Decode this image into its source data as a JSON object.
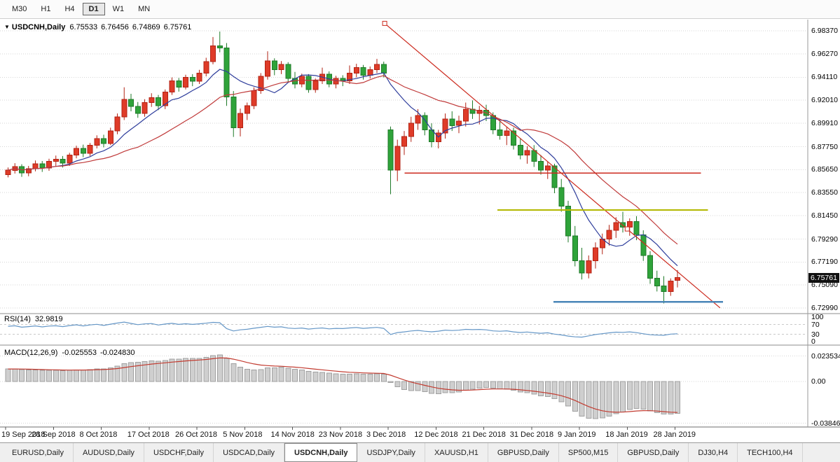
{
  "toolbar": {
    "timeframes": [
      {
        "label": "M30",
        "active": false
      },
      {
        "label": "H1",
        "active": false
      },
      {
        "label": "H4",
        "active": false
      },
      {
        "label": "D1",
        "active": true
      },
      {
        "label": "W1",
        "active": false
      },
      {
        "label": "MN",
        "active": false
      }
    ]
  },
  "header": {
    "dropdown_icon": "▼",
    "symbol": "USDCNH,Daily",
    "open": "6.75533",
    "high": "6.76456",
    "low": "6.74869",
    "close": "6.75761"
  },
  "price_axis": {
    "ticks": [
      "6.98370",
      "6.96270",
      "6.94110",
      "6.92010",
      "6.89910",
      "6.87750",
      "6.85650",
      "6.83550",
      "6.81450",
      "6.79290",
      "6.77190",
      "6.75090",
      "6.72990"
    ],
    "bid_badge": "6.75761"
  },
  "indicators": {
    "rsi": {
      "label": "RSI(14)",
      "value": "32.9819",
      "axis_ticks": [
        "100",
        "70",
        "30",
        "0"
      ],
      "level_lines": [
        70,
        30
      ]
    },
    "macd": {
      "label": "MACD(12,26,9)",
      "value_main": "-0.025553",
      "value_signal": "-0.024830",
      "axis_ticks": [
        "0.023534",
        "0.00",
        "-0.038466"
      ]
    }
  },
  "date_axis": {
    "labels": [
      "19 Sep 2018",
      "28 Sep 2018",
      "8 Oct 2018",
      "17 Oct 2018",
      "26 Oct 2018",
      "5 Nov 2018",
      "14 Nov 2018",
      "23 Nov 2018",
      "3 Dec 2018",
      "12 Dec 2018",
      "21 Dec 2018",
      "31 Dec 2018",
      "9 Jan 2019",
      "18 Jan 2019",
      "28 Jan 2019"
    ],
    "bars_per_label": 7
  },
  "tabs": [
    {
      "label": "EURUSD,Daily",
      "active": false
    },
    {
      "label": "AUDUSD,Daily",
      "active": false
    },
    {
      "label": "USDCHF,Daily",
      "active": false
    },
    {
      "label": "USDCAD,Daily",
      "active": false
    },
    {
      "label": "USDCNH,Daily",
      "active": true
    },
    {
      "label": "USDJPY,Daily",
      "active": false
    },
    {
      "label": "XAUUSD,H1",
      "active": false
    },
    {
      "label": "GBPUSD,Daily",
      "active": false
    },
    {
      "label": "SP500,M15",
      "active": false
    },
    {
      "label": "GBPUSD,Daily",
      "active": false
    },
    {
      "label": "DJ30,H4",
      "active": false
    },
    {
      "label": "TECH100,H4",
      "active": false
    }
  ],
  "chart_data": {
    "type": "candlestick",
    "symbol": "USDCNH",
    "timeframe": "Daily",
    "candle_convention": "red=bullish(up), green=bearish(down)",
    "ohlc_current": {
      "open": 6.75533,
      "high": 6.76456,
      "low": 6.74869,
      "close": 6.75761
    },
    "price_axis_range": {
      "top": 6.994,
      "bottom": 6.725
    },
    "candles": [
      [
        6.852,
        6.8585,
        6.8495,
        6.856
      ],
      [
        6.856,
        6.8625,
        6.853,
        6.8595
      ],
      [
        6.8595,
        6.8615,
        6.85,
        6.8535
      ],
      [
        6.8535,
        6.86,
        6.8505,
        6.8575
      ],
      [
        6.8575,
        6.865,
        6.855,
        6.862
      ],
      [
        6.862,
        6.8645,
        6.8545,
        6.858
      ],
      [
        6.858,
        6.8665,
        6.8555,
        6.864
      ],
      [
        6.864,
        6.8695,
        6.86,
        6.866
      ],
      [
        6.866,
        6.869,
        6.8585,
        6.8625
      ],
      [
        6.8625,
        6.872,
        6.86,
        6.87
      ],
      [
        6.87,
        6.8785,
        6.867,
        6.876
      ],
      [
        6.876,
        6.8795,
        6.868,
        6.8715
      ],
      [
        6.8715,
        6.881,
        6.869,
        6.879
      ],
      [
        6.879,
        6.888,
        6.876,
        6.885
      ],
      [
        6.885,
        6.8885,
        6.877,
        6.8805
      ],
      [
        6.8805,
        6.895,
        6.879,
        6.892
      ],
      [
        6.892,
        6.908,
        6.889,
        6.905
      ],
      [
        6.905,
        6.932,
        6.902,
        6.921
      ],
      [
        6.921,
        6.926,
        6.91,
        6.9145
      ],
      [
        6.9145,
        6.9185,
        6.904,
        6.908
      ],
      [
        6.908,
        6.921,
        6.905,
        6.918
      ],
      [
        6.918,
        6.9265,
        6.914,
        6.9225
      ],
      [
        6.9225,
        6.925,
        6.911,
        6.915
      ],
      [
        6.915,
        6.93,
        6.912,
        6.9275
      ],
      [
        6.9275,
        6.941,
        6.925,
        6.938
      ],
      [
        6.938,
        6.9405,
        6.928,
        6.932
      ],
      [
        6.932,
        6.9435,
        6.93,
        6.941
      ],
      [
        6.941,
        6.944,
        6.933,
        6.9375
      ],
      [
        6.9375,
        6.948,
        6.935,
        6.945
      ],
      [
        6.945,
        6.959,
        6.942,
        6.9555
      ],
      [
        6.9555,
        6.978,
        6.953,
        6.97
      ],
      [
        6.97,
        6.983,
        6.964,
        6.968
      ],
      [
        6.968,
        6.9725,
        6.915,
        6.923
      ],
      [
        6.923,
        6.9285,
        6.8865,
        6.895
      ],
      [
        6.895,
        6.9125,
        6.887,
        6.908
      ],
      [
        6.908,
        6.918,
        6.902,
        6.915
      ],
      [
        6.915,
        6.932,
        6.912,
        6.929
      ],
      [
        6.929,
        6.945,
        6.926,
        6.942
      ],
      [
        6.942,
        6.965,
        6.939,
        6.956
      ],
      [
        6.956,
        6.9585,
        6.943,
        6.948
      ],
      [
        6.948,
        6.956,
        6.944,
        6.953
      ],
      [
        6.953,
        6.955,
        6.937,
        6.94
      ],
      [
        6.94,
        6.946,
        6.931,
        6.935
      ],
      [
        6.935,
        6.9445,
        6.932,
        6.942
      ],
      [
        6.942,
        6.944,
        6.927,
        6.93
      ],
      [
        6.93,
        6.94,
        6.927,
        6.938
      ],
      [
        6.938,
        6.95,
        6.935,
        6.944
      ],
      [
        6.944,
        6.9465,
        6.932,
        6.935
      ],
      [
        6.935,
        6.9425,
        6.931,
        6.94
      ],
      [
        6.94,
        6.943,
        6.933,
        6.938
      ],
      [
        6.938,
        6.952,
        6.935,
        6.945
      ],
      [
        6.945,
        6.9535,
        6.941,
        6.95
      ],
      [
        6.95,
        6.9525,
        6.939,
        6.943
      ],
      [
        6.943,
        6.951,
        6.94,
        6.948
      ],
      [
        6.948,
        6.958,
        6.945,
        6.953
      ],
      [
        6.953,
        6.9555,
        6.941,
        6.945
      ],
      [
        6.893,
        6.896,
        6.834,
        6.856
      ],
      [
        6.856,
        6.884,
        6.846,
        6.878
      ],
      [
        6.878,
        6.892,
        6.87,
        6.887
      ],
      [
        6.887,
        6.905,
        6.882,
        6.899
      ],
      [
        6.899,
        6.912,
        6.893,
        6.906
      ],
      [
        6.906,
        6.909,
        6.888,
        6.893
      ],
      [
        6.893,
        6.899,
        6.877,
        6.882
      ],
      [
        6.882,
        6.893,
        6.876,
        6.89
      ],
      [
        6.89,
        6.908,
        6.885,
        6.903
      ],
      [
        6.903,
        6.91,
        6.892,
        6.897
      ],
      [
        6.897,
        6.906,
        6.89,
        6.901
      ],
      [
        6.901,
        6.918,
        6.896,
        6.912
      ],
      [
        6.912,
        6.92,
        6.903,
        6.908
      ],
      [
        6.908,
        6.915,
        6.898,
        6.911
      ],
      [
        6.911,
        6.916,
        6.901,
        6.906
      ],
      [
        6.906,
        6.909,
        6.889,
        6.893
      ],
      [
        6.893,
        6.901,
        6.884,
        6.888
      ],
      [
        6.888,
        6.896,
        6.879,
        6.892
      ],
      [
        6.892,
        6.895,
        6.875,
        6.879
      ],
      [
        6.879,
        6.885,
        6.866,
        6.87
      ],
      [
        6.87,
        6.878,
        6.862,
        6.874
      ],
      [
        6.874,
        6.879,
        6.859,
        6.864
      ],
      [
        6.864,
        6.87,
        6.852,
        6.856
      ],
      [
        6.856,
        6.864,
        6.848,
        6.86
      ],
      [
        6.86,
        6.862,
        6.835,
        6.84
      ],
      [
        6.84,
        6.848,
        6.818,
        6.823
      ],
      [
        6.823,
        6.828,
        6.79,
        6.796
      ],
      [
        6.796,
        6.805,
        6.768,
        6.773
      ],
      [
        6.773,
        6.785,
        6.756,
        6.762
      ],
      [
        6.762,
        6.778,
        6.757,
        6.773
      ],
      [
        6.773,
        6.79,
        6.766,
        6.785
      ],
      [
        6.785,
        6.798,
        6.779,
        6.793
      ],
      [
        6.793,
        6.806,
        6.787,
        6.801
      ],
      [
        6.801,
        6.813,
        6.794,
        6.808
      ],
      [
        6.808,
        6.818,
        6.799,
        6.804
      ],
      [
        6.804,
        6.812,
        6.796,
        6.809
      ],
      [
        6.809,
        6.814,
        6.792,
        6.797
      ],
      [
        6.797,
        6.801,
        6.773,
        6.778
      ],
      [
        6.778,
        6.782,
        6.752,
        6.757
      ],
      [
        6.757,
        6.764,
        6.745,
        6.75
      ],
      [
        6.75,
        6.759,
        6.734,
        6.745
      ],
      [
        6.745,
        6.757,
        6.741,
        6.7545
      ],
      [
        6.75533,
        6.76456,
        6.74869,
        6.75761
      ]
    ],
    "moving_averages": [
      {
        "name": "fast",
        "period": 8,
        "color_key": "ma_fast"
      },
      {
        "name": "slow",
        "period": 20,
        "color_key": "ma_slow"
      }
    ],
    "objects": {
      "trendline": {
        "from_bar": 55.5,
        "from_price": 6.9905,
        "to_bar": 104.6,
        "to_price": 6.73,
        "handles": [
          [
            55.5,
            6.9905
          ],
          [
            91,
            6.8022
          ]
        ],
        "color_key": "object_red"
      },
      "hlines": [
        {
          "price": 6.8535,
          "from_bar": 58.4,
          "to_bar": 101.8,
          "color_key": "object_red",
          "width": 1.5
        },
        {
          "price": 6.8195,
          "from_bar": 72.0,
          "to_bar": 102.8,
          "color_key": "object_olive",
          "width": 2
        },
        {
          "price": 6.7355,
          "from_bar": 80.2,
          "to_bar": 105.0,
          "color_key": "object_blue",
          "width": 2.5
        }
      ]
    },
    "indicator_seed": {
      "rsi_avg_gain": 0.003,
      "rsi_avg_loss": 0.0018,
      "ema12": 6.848,
      "ema26": 6.836,
      "signal": 0.0115
    },
    "colors": {
      "bull": "#df3b28",
      "bull_border": "#b22314",
      "bear": "#2fa33a",
      "bear_border": "#1f7a28",
      "ma_fast": "#2f3e9c",
      "ma_slow": "#c03a3a",
      "object_red": "#cc2a1e",
      "object_olive": "#b3b800",
      "object_blue": "#4a86b8",
      "rsi_line": "#6597c7",
      "macd_hist": "#cfcfcf",
      "macd_hist_border": "#a0a0a0",
      "macd_signal": "#c23b30",
      "grid": "#d6d6d6",
      "panel_border": "#8c8c8c",
      "badge_bg": "#111111",
      "badge_text": "#ffffff"
    }
  }
}
